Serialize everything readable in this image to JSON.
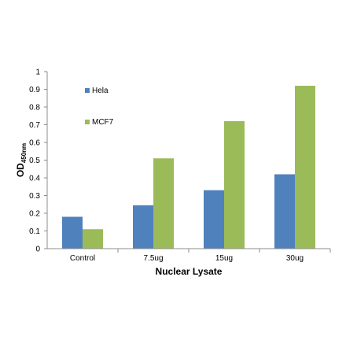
{
  "chart_data": {
    "type": "bar",
    "title": "",
    "xlabel": "Nuclear Lysate",
    "ylabel": {
      "main": "OD",
      "sub": "450nm"
    },
    "categories": [
      "Control",
      "7.5ug",
      "15ug",
      "30ug"
    ],
    "series": [
      {
        "name": "Hela",
        "color": "#4f81bd",
        "values": [
          0.18,
          0.245,
          0.33,
          0.42
        ]
      },
      {
        "name": "MCF7",
        "color": "#9bbb59",
        "values": [
          0.11,
          0.51,
          0.72,
          0.92
        ]
      }
    ],
    "ylim": [
      0,
      1
    ],
    "yticks": [
      "0",
      "0.1",
      "0.2",
      "0.3",
      "0.4",
      "0.5",
      "0.6",
      "0.7",
      "0.8",
      "0.9",
      "1"
    ],
    "grid": false,
    "legend_position": "top-left"
  }
}
